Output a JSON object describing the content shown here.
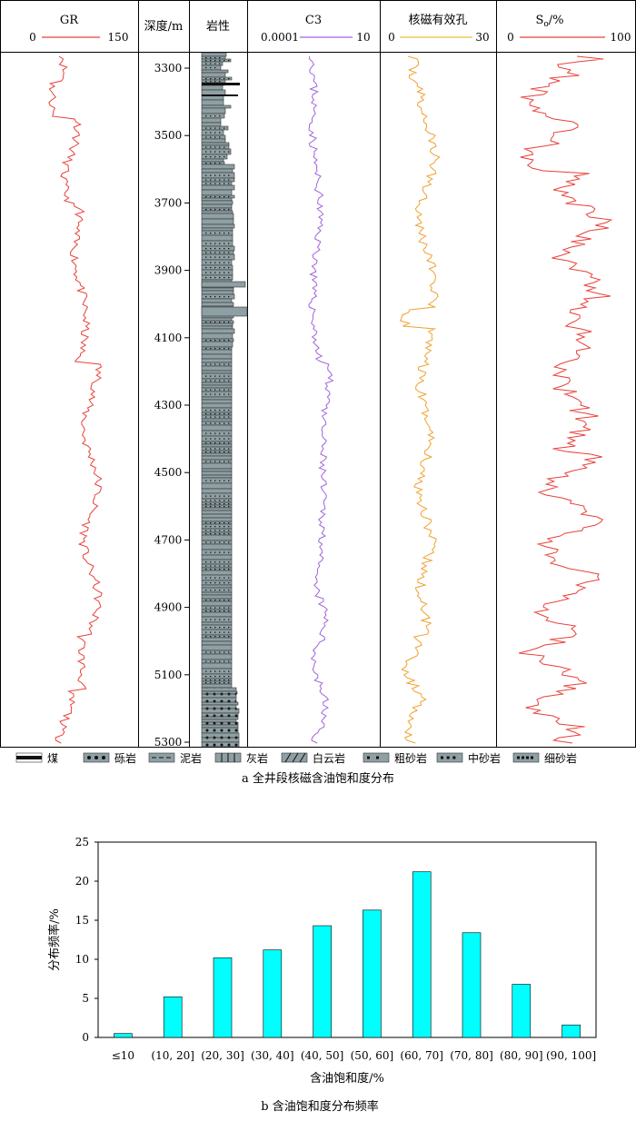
{
  "figure_a": {
    "caption": "a  全井段核磁含油饱和度分布",
    "tracks": {
      "gr": {
        "title": "GR",
        "min": "0",
        "max": "150",
        "color": "#e8403a"
      },
      "depth": {
        "title": "深度/m",
        "ticks": [
          "3300",
          "3500",
          "3700",
          "3900",
          "4100",
          "4300",
          "4500",
          "4700",
          "4900",
          "5100",
          "5300"
        ]
      },
      "litho": {
        "title": "岩性"
      },
      "c3": {
        "title": "C3",
        "min": "0.0001",
        "max": "10",
        "color": "#a064dc"
      },
      "nmr": {
        "title": "核磁有效孔",
        "min": "0",
        "max": "30",
        "color": "#f0a030",
        "scale_color": "#e8c030"
      },
      "so": {
        "title_main": "S",
        "title_sub": "o",
        "title_unit": "/%",
        "min": "0",
        "max": "100",
        "color": "#e8403a"
      }
    },
    "legend": [
      {
        "label": "煤",
        "pattern": "coal"
      },
      {
        "label": "砾岩",
        "pattern": "conglomerate"
      },
      {
        "label": "泥岩",
        "pattern": "mudstone"
      },
      {
        "label": "灰岩",
        "pattern": "limestone"
      },
      {
        "label": "白云岩",
        "pattern": "dolomite"
      },
      {
        "label": "粗砂岩",
        "pattern": "coarse-sandstone"
      },
      {
        "label": "中砂岩",
        "pattern": "medium-sandstone"
      },
      {
        "label": "细砂岩",
        "pattern": "fine-sandstone"
      }
    ],
    "lithology_fill": "#8fa0a4"
  },
  "chart_data": {
    "type": "bar",
    "caption": "b  含油饱和度分布频率",
    "categories": [
      "≤10",
      "(10, 20]",
      "(20, 30]",
      "(30, 40]",
      "(40, 50]",
      "(50, 60]",
      "(60, 70]",
      "(70, 80]",
      "(80, 90]",
      "(90, 100]"
    ],
    "values": [
      0.5,
      5.2,
      10.2,
      11.2,
      14.3,
      16.3,
      21.2,
      13.4,
      6.8,
      1.6
    ],
    "xlabel": "含油饱和度/%",
    "ylabel": "分布频率/%",
    "ylim": [
      0,
      25
    ],
    "yticks": [
      "0",
      "5",
      "10",
      "15",
      "20",
      "25"
    ],
    "bar_color": "#00ffff"
  }
}
